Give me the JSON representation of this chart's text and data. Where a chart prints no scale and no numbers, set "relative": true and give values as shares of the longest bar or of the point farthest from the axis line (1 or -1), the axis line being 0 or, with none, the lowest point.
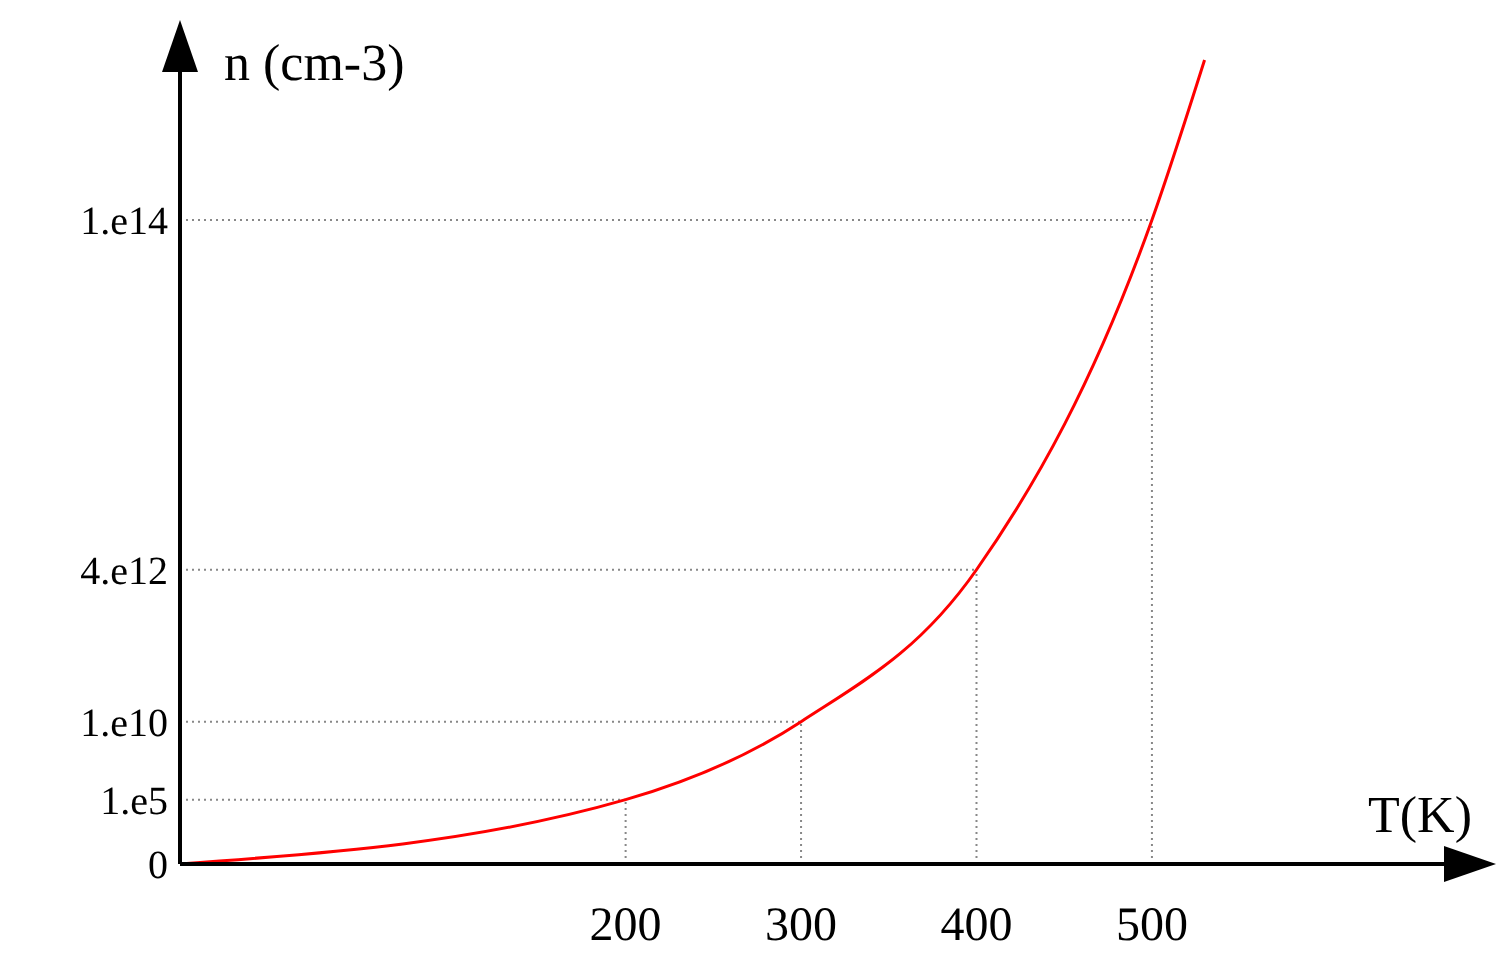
{
  "chart_data": {
    "type": "line",
    "xlabel": "T(K)",
    "ylabel": "n (cm-3)",
    "relative": true,
    "x": [
      -54,
      200,
      300,
      400,
      500,
      530
    ],
    "series": [
      {
        "color": "#ff0000",
        "values": [
          0,
          0.08,
          0.177,
          0.366,
          0.801,
          1
        ]
      }
    ],
    "xlim": [
      -54,
      687
    ],
    "xticks": [
      200,
      300,
      400,
      500
    ],
    "annotations": [
      {
        "text": "0",
        "x": -54,
        "y": 0
      },
      {
        "text": "1.e5",
        "x": 200,
        "y": 0.08
      },
      {
        "text": "1.e10",
        "x": 300,
        "y": 0.177
      },
      {
        "text": "4.e12",
        "x": 400,
        "y": 0.366
      },
      {
        "text": "1.e14",
        "x": 500,
        "y": 0.801
      }
    ],
    "ref_lines": [
      {
        "axis": "x",
        "value": 200,
        "color": "#888888",
        "line_style": "dotted"
      },
      {
        "axis": "x",
        "value": 300,
        "color": "#888888",
        "line_style": "dotted"
      },
      {
        "axis": "x",
        "value": 400,
        "color": "#888888",
        "line_style": "dotted"
      },
      {
        "axis": "x",
        "value": 500,
        "color": "#888888",
        "line_style": "dotted"
      }
    ],
    "marker": "none",
    "line_style": "solid"
  }
}
